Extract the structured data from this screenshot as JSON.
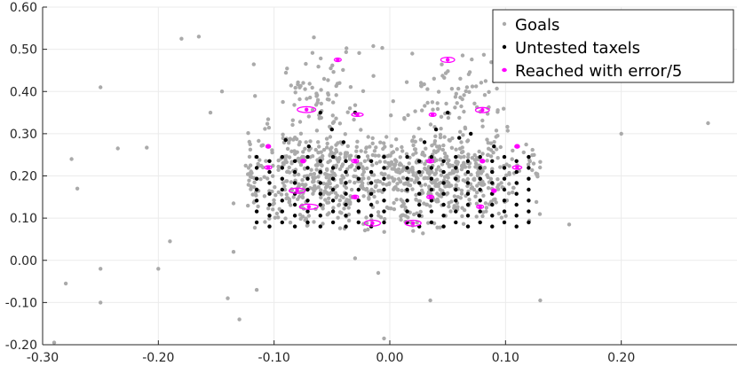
{
  "chart_data": {
    "type": "scatter",
    "xlim": [
      -0.3,
      0.3
    ],
    "ylim": [
      -0.2,
      0.6
    ],
    "x_ticks": [
      "-0.30",
      "-0.20",
      "-0.10",
      "0.00",
      "0.10",
      "0.20"
    ],
    "x_tick_values": [
      -0.3,
      -0.2,
      -0.1,
      0.0,
      0.1,
      0.2
    ],
    "y_ticks": [
      "-0.20",
      "-0.10",
      "0.00",
      "0.10",
      "0.20",
      "0.30",
      "0.40",
      "0.50",
      "0.60"
    ],
    "y_tick_values": [
      -0.2,
      -0.1,
      0.0,
      0.1,
      0.2,
      0.3,
      0.4,
      0.5,
      0.6
    ],
    "grid": true,
    "legend_position": "top-right",
    "series": [
      {
        "name": "Goals",
        "color": "#aaaaaa",
        "outliers": [
          [
            -0.29,
            -0.195
          ],
          [
            -0.28,
            -0.055
          ],
          [
            -0.275,
            0.24
          ],
          [
            -0.27,
            0.17
          ],
          [
            -0.25,
            0.41
          ],
          [
            -0.25,
            -0.02
          ],
          [
            -0.25,
            -0.1
          ],
          [
            -0.235,
            0.265
          ],
          [
            -0.21,
            0.267
          ],
          [
            -0.2,
            -0.02
          ],
          [
            -0.19,
            0.045
          ],
          [
            -0.18,
            0.525
          ],
          [
            -0.165,
            0.53
          ],
          [
            -0.155,
            0.35
          ],
          [
            -0.145,
            0.4
          ],
          [
            -0.135,
            0.135
          ],
          [
            -0.135,
            0.02
          ],
          [
            -0.14,
            -0.09
          ],
          [
            -0.13,
            -0.14
          ],
          [
            -0.115,
            -0.07
          ],
          [
            -0.1,
            0.135
          ],
          [
            -0.03,
            0.005
          ],
          [
            -0.01,
            -0.03
          ],
          [
            -0.005,
            -0.185
          ],
          [
            0.1,
            0.14
          ],
          [
            0.13,
            -0.095
          ],
          [
            0.155,
            0.085
          ],
          [
            0.2,
            0.3
          ],
          [
            0.275,
            0.325
          ],
          [
            0.035,
            -0.095
          ]
        ],
        "clusters": [
          {
            "cx": -0.065,
            "cy": 0.205,
            "sx": 0.035,
            "sy": 0.055,
            "n": 420
          },
          {
            "cx": 0.055,
            "cy": 0.205,
            "sx": 0.035,
            "sy": 0.055,
            "n": 420
          },
          {
            "cx": -0.055,
            "cy": 0.4,
            "sx": 0.022,
            "sy": 0.045,
            "n": 70
          },
          {
            "cx": 0.055,
            "cy": 0.4,
            "sx": 0.022,
            "sy": 0.045,
            "n": 70
          },
          {
            "cx": -0.005,
            "cy": 0.18,
            "sx": 0.03,
            "sy": 0.05,
            "n": 120
          }
        ]
      },
      {
        "name": "Untested taxels",
        "color": "#000000",
        "grids": [
          {
            "x0": -0.115,
            "x1": -0.005,
            "cols": 11,
            "y0": 0.245,
            "y1": 0.09,
            "rows": 7
          },
          {
            "x0": 0.015,
            "x1": 0.12,
            "cols": 11,
            "y0": 0.245,
            "y1": 0.09,
            "rows": 7
          }
        ],
        "extra": [
          [
            -0.06,
            0.35
          ],
          [
            -0.05,
            0.31
          ],
          [
            -0.04,
            0.28
          ],
          [
            -0.03,
            0.35
          ],
          [
            -0.09,
            0.285
          ],
          [
            -0.07,
            0.27
          ],
          [
            0.05,
            0.35
          ],
          [
            0.04,
            0.31
          ],
          [
            0.06,
            0.29
          ],
          [
            0.03,
            0.28
          ],
          [
            0.09,
            0.27
          ],
          [
            0.07,
            0.3
          ]
        ]
      },
      {
        "name": "Reached with error/5",
        "color": "#ff00ff",
        "points": [
          [
            -0.045,
            0.475,
            0.003,
            0.003
          ],
          [
            0.05,
            0.475,
            0.006,
            0.006
          ],
          [
            -0.072,
            0.357,
            0.008,
            0.007
          ],
          [
            -0.028,
            0.345,
            0.005,
            0.004
          ],
          [
            0.08,
            0.356,
            0.006,
            0.006
          ],
          [
            0.037,
            0.345,
            0.003,
            0.003
          ],
          [
            -0.105,
            0.27,
            0.002,
            0.003
          ],
          [
            0.11,
            0.27,
            0.002,
            0.003
          ],
          [
            -0.03,
            0.235,
            0.003,
            0.003
          ],
          [
            0.035,
            0.235,
            0.003,
            0.003
          ],
          [
            -0.075,
            0.235,
            0.002,
            0.002
          ],
          [
            0.08,
            0.235,
            0.002,
            0.002
          ],
          [
            -0.105,
            0.22,
            0.003,
            0.003
          ],
          [
            0.11,
            0.22,
            0.004,
            0.003
          ],
          [
            -0.08,
            0.165,
            0.007,
            0.006
          ],
          [
            0.09,
            0.165,
            0.002,
            0.003
          ],
          [
            -0.03,
            0.15,
            0.003,
            0.003
          ],
          [
            0.035,
            0.15,
            0.003,
            0.003
          ],
          [
            -0.07,
            0.127,
            0.008,
            0.006
          ],
          [
            0.078,
            0.127,
            0.003,
            0.003
          ],
          [
            -0.015,
            0.088,
            0.007,
            0.007
          ],
          [
            0.02,
            0.088,
            0.007,
            0.007
          ]
        ]
      }
    ]
  }
}
